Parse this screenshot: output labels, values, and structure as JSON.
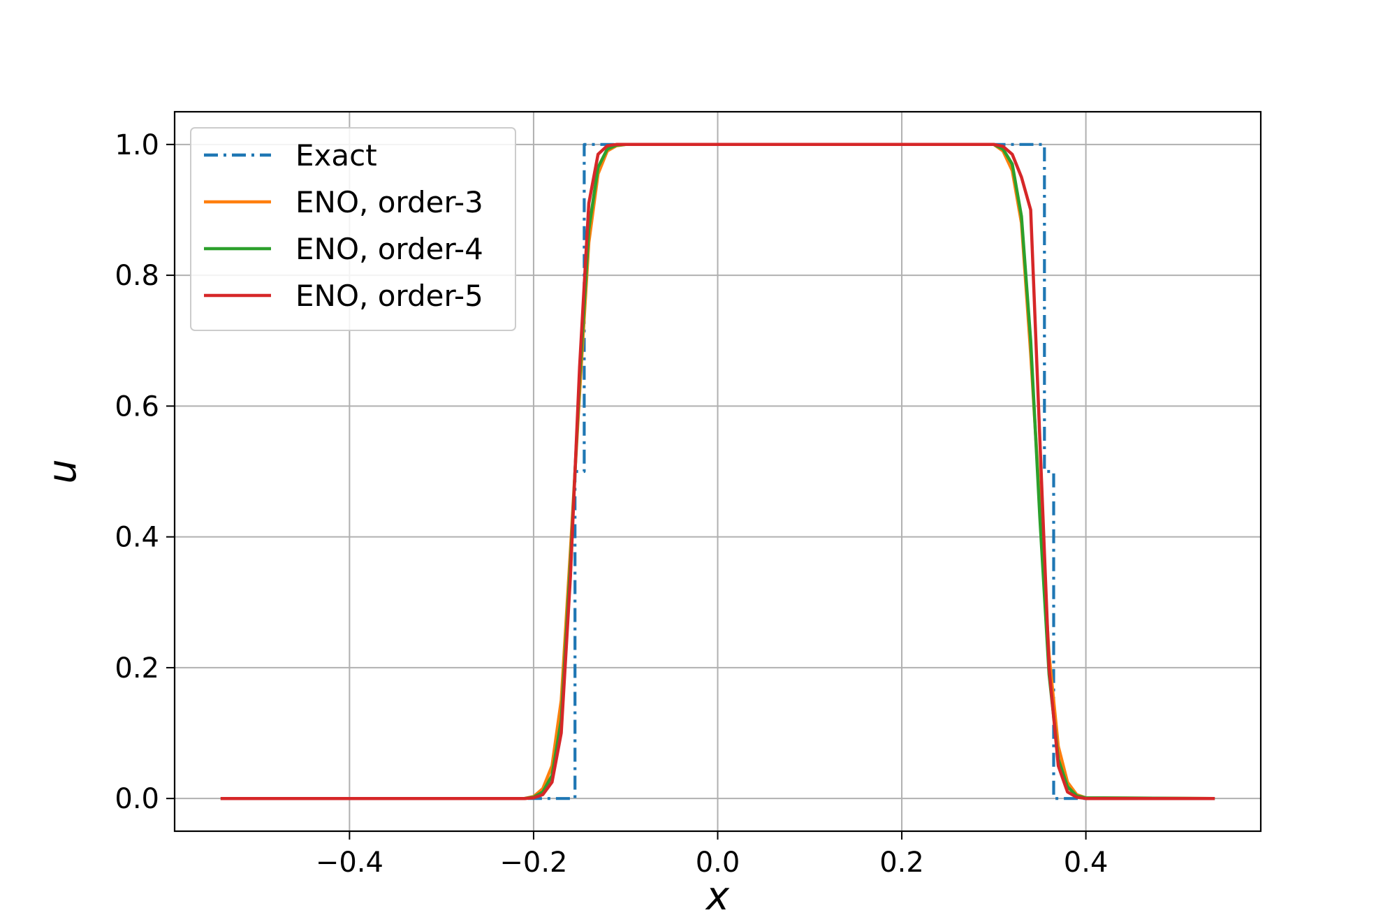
{
  "chart_data": {
    "type": "line",
    "xlabel": "x",
    "ylabel": "u",
    "xlim": [
      -0.59,
      0.59
    ],
    "ylim": [
      -0.05,
      1.05
    ],
    "xticks": [
      -0.4,
      -0.2,
      0.0,
      0.2,
      0.4
    ],
    "xtick_labels": [
      "−0.4",
      "−0.2",
      "0.0",
      "0.2",
      "0.4"
    ],
    "yticks": [
      0.0,
      0.2,
      0.4,
      0.6,
      0.8,
      1.0
    ],
    "ytick_labels": [
      "0.0",
      "0.2",
      "0.4",
      "0.6",
      "0.8",
      "1.0"
    ],
    "grid": true,
    "legend": {
      "placement": "top-left"
    },
    "series": [
      {
        "name": "Exact",
        "color": "#1f77b4",
        "style": "dashdot",
        "x": [
          -0.54,
          -0.155,
          -0.155,
          -0.145,
          -0.145,
          0.355,
          0.355,
          0.365,
          0.365,
          0.54
        ],
        "y": [
          0,
          0,
          0.5,
          0.5,
          1,
          1,
          0.5,
          0.5,
          0,
          0
        ]
      },
      {
        "name": "ENO, order-3",
        "color": "#ff7f0e",
        "style": "solid",
        "x": [
          -0.54,
          -0.21,
          -0.2,
          -0.19,
          -0.18,
          -0.17,
          -0.16,
          -0.15,
          -0.14,
          -0.13,
          -0.12,
          -0.11,
          -0.1,
          -0.09,
          0.3,
          0.31,
          0.32,
          0.33,
          0.34,
          0.35,
          0.36,
          0.37,
          0.38,
          0.39,
          0.4,
          0.54
        ],
        "y": [
          0,
          0,
          0.003,
          0.015,
          0.05,
          0.15,
          0.38,
          0.62,
          0.85,
          0.955,
          0.99,
          0.998,
          1,
          1,
          1,
          0.99,
          0.96,
          0.88,
          0.68,
          0.45,
          0.22,
          0.08,
          0.025,
          0.006,
          0.001,
          0
        ]
      },
      {
        "name": "ENO, order-4",
        "color": "#2ca02c",
        "style": "solid",
        "x": [
          -0.54,
          -0.21,
          -0.2,
          -0.19,
          -0.18,
          -0.17,
          -0.16,
          -0.15,
          -0.14,
          -0.13,
          -0.12,
          -0.11,
          -0.1,
          -0.09,
          0.3,
          0.31,
          0.32,
          0.33,
          0.34,
          0.35,
          0.36,
          0.37,
          0.38,
          0.39,
          0.4,
          0.54
        ],
        "y": [
          0,
          0,
          0.002,
          0.01,
          0.035,
          0.12,
          0.36,
          0.64,
          0.87,
          0.965,
          0.993,
          0.999,
          1,
          1,
          1,
          0.993,
          0.97,
          0.89,
          0.7,
          0.43,
          0.19,
          0.06,
          0.018,
          0.004,
          0.001,
          0
        ]
      },
      {
        "name": "ENO, order-5",
        "color": "#d62728",
        "style": "solid",
        "x": [
          -0.54,
          -0.21,
          -0.2,
          -0.19,
          -0.18,
          -0.17,
          -0.16,
          -0.15,
          -0.14,
          -0.13,
          -0.12,
          -0.11,
          -0.1,
          -0.09,
          0.3,
          0.31,
          0.32,
          0.33,
          0.34,
          0.35,
          0.36,
          0.37,
          0.38,
          0.39,
          0.4,
          0.54
        ],
        "y": [
          0,
          0,
          0.001,
          0.006,
          0.025,
          0.1,
          0.34,
          0.66,
          0.91,
          0.985,
          0.998,
          1,
          1,
          1,
          1,
          0.997,
          0.985,
          0.95,
          0.9,
          0.55,
          0.2,
          0.05,
          0.01,
          0.002,
          0,
          0
        ]
      }
    ]
  }
}
